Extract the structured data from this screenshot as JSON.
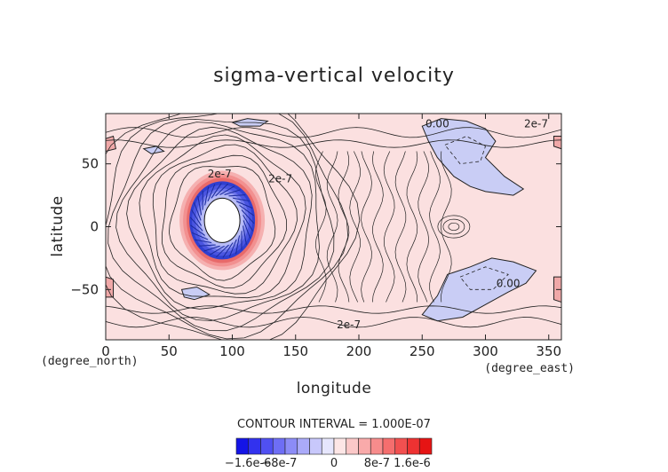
{
  "chart_data": {
    "type": "contour",
    "title": "sigma-vertical velocity",
    "xlabel": "longitude",
    "ylabel": "latitude",
    "x_unit": "(degree_east)",
    "y_unit": "(degree_north)",
    "xlim": [
      0,
      360
    ],
    "ylim": [
      -90,
      90
    ],
    "x_ticks": [
      0,
      50,
      100,
      150,
      200,
      250,
      300,
      350
    ],
    "y_ticks": [
      -50,
      0,
      50
    ],
    "x_tick_labels": [
      "0",
      "50",
      "100",
      "150",
      "200",
      "250",
      "300",
      "350"
    ],
    "y_tick_labels": [
      "−50",
      "0",
      "50"
    ],
    "contour_interval_text": "CONTOUR INTERVAL = 1.000E-07",
    "contour_labels": [
      {
        "text": "0.00",
        "lon": 262,
        "lat": 82
      },
      {
        "text": "2e-7",
        "lon": 340,
        "lat": 82
      },
      {
        "text": "2e-7",
        "lon": 90,
        "lat": 42
      },
      {
        "text": "2e-7",
        "lon": 138,
        "lat": 38
      },
      {
        "text": "2e-7",
        "lon": 192,
        "lat": -78
      },
      {
        "text": "0.00",
        "lon": 318,
        "lat": -45
      }
    ],
    "features": [
      {
        "kind": "downdraft_core",
        "lon": 92,
        "lat": 5,
        "note": "strong negative vortex center"
      },
      {
        "kind": "negative_region",
        "lon": 280,
        "lat": 50
      },
      {
        "kind": "negative_region",
        "lon": 290,
        "lat": -45
      },
      {
        "kind": "negative_region",
        "lon": 110,
        "lat": 82
      },
      {
        "kind": "negative_region",
        "lon": 70,
        "lat": -55
      },
      {
        "kind": "negative_region",
        "lon": 280,
        "lat": 65
      }
    ],
    "colorbar": {
      "tick_labels": [
        "−1.6e-6",
        "−8e-7",
        "0",
        "8e-7",
        "1.6e-6"
      ],
      "colors": [
        "#1414e6",
        "#3232ee",
        "#5050f2",
        "#6e6ef5",
        "#8c8cf7",
        "#aaaaf9",
        "#c8c8fb",
        "#e6e6fd",
        "#fde6e6",
        "#fbc8c8",
        "#f9aaaa",
        "#f78c8c",
        "#f56e6e",
        "#f25050",
        "#ee3232",
        "#e61414"
      ]
    },
    "background_color": "#fbe0e0"
  }
}
